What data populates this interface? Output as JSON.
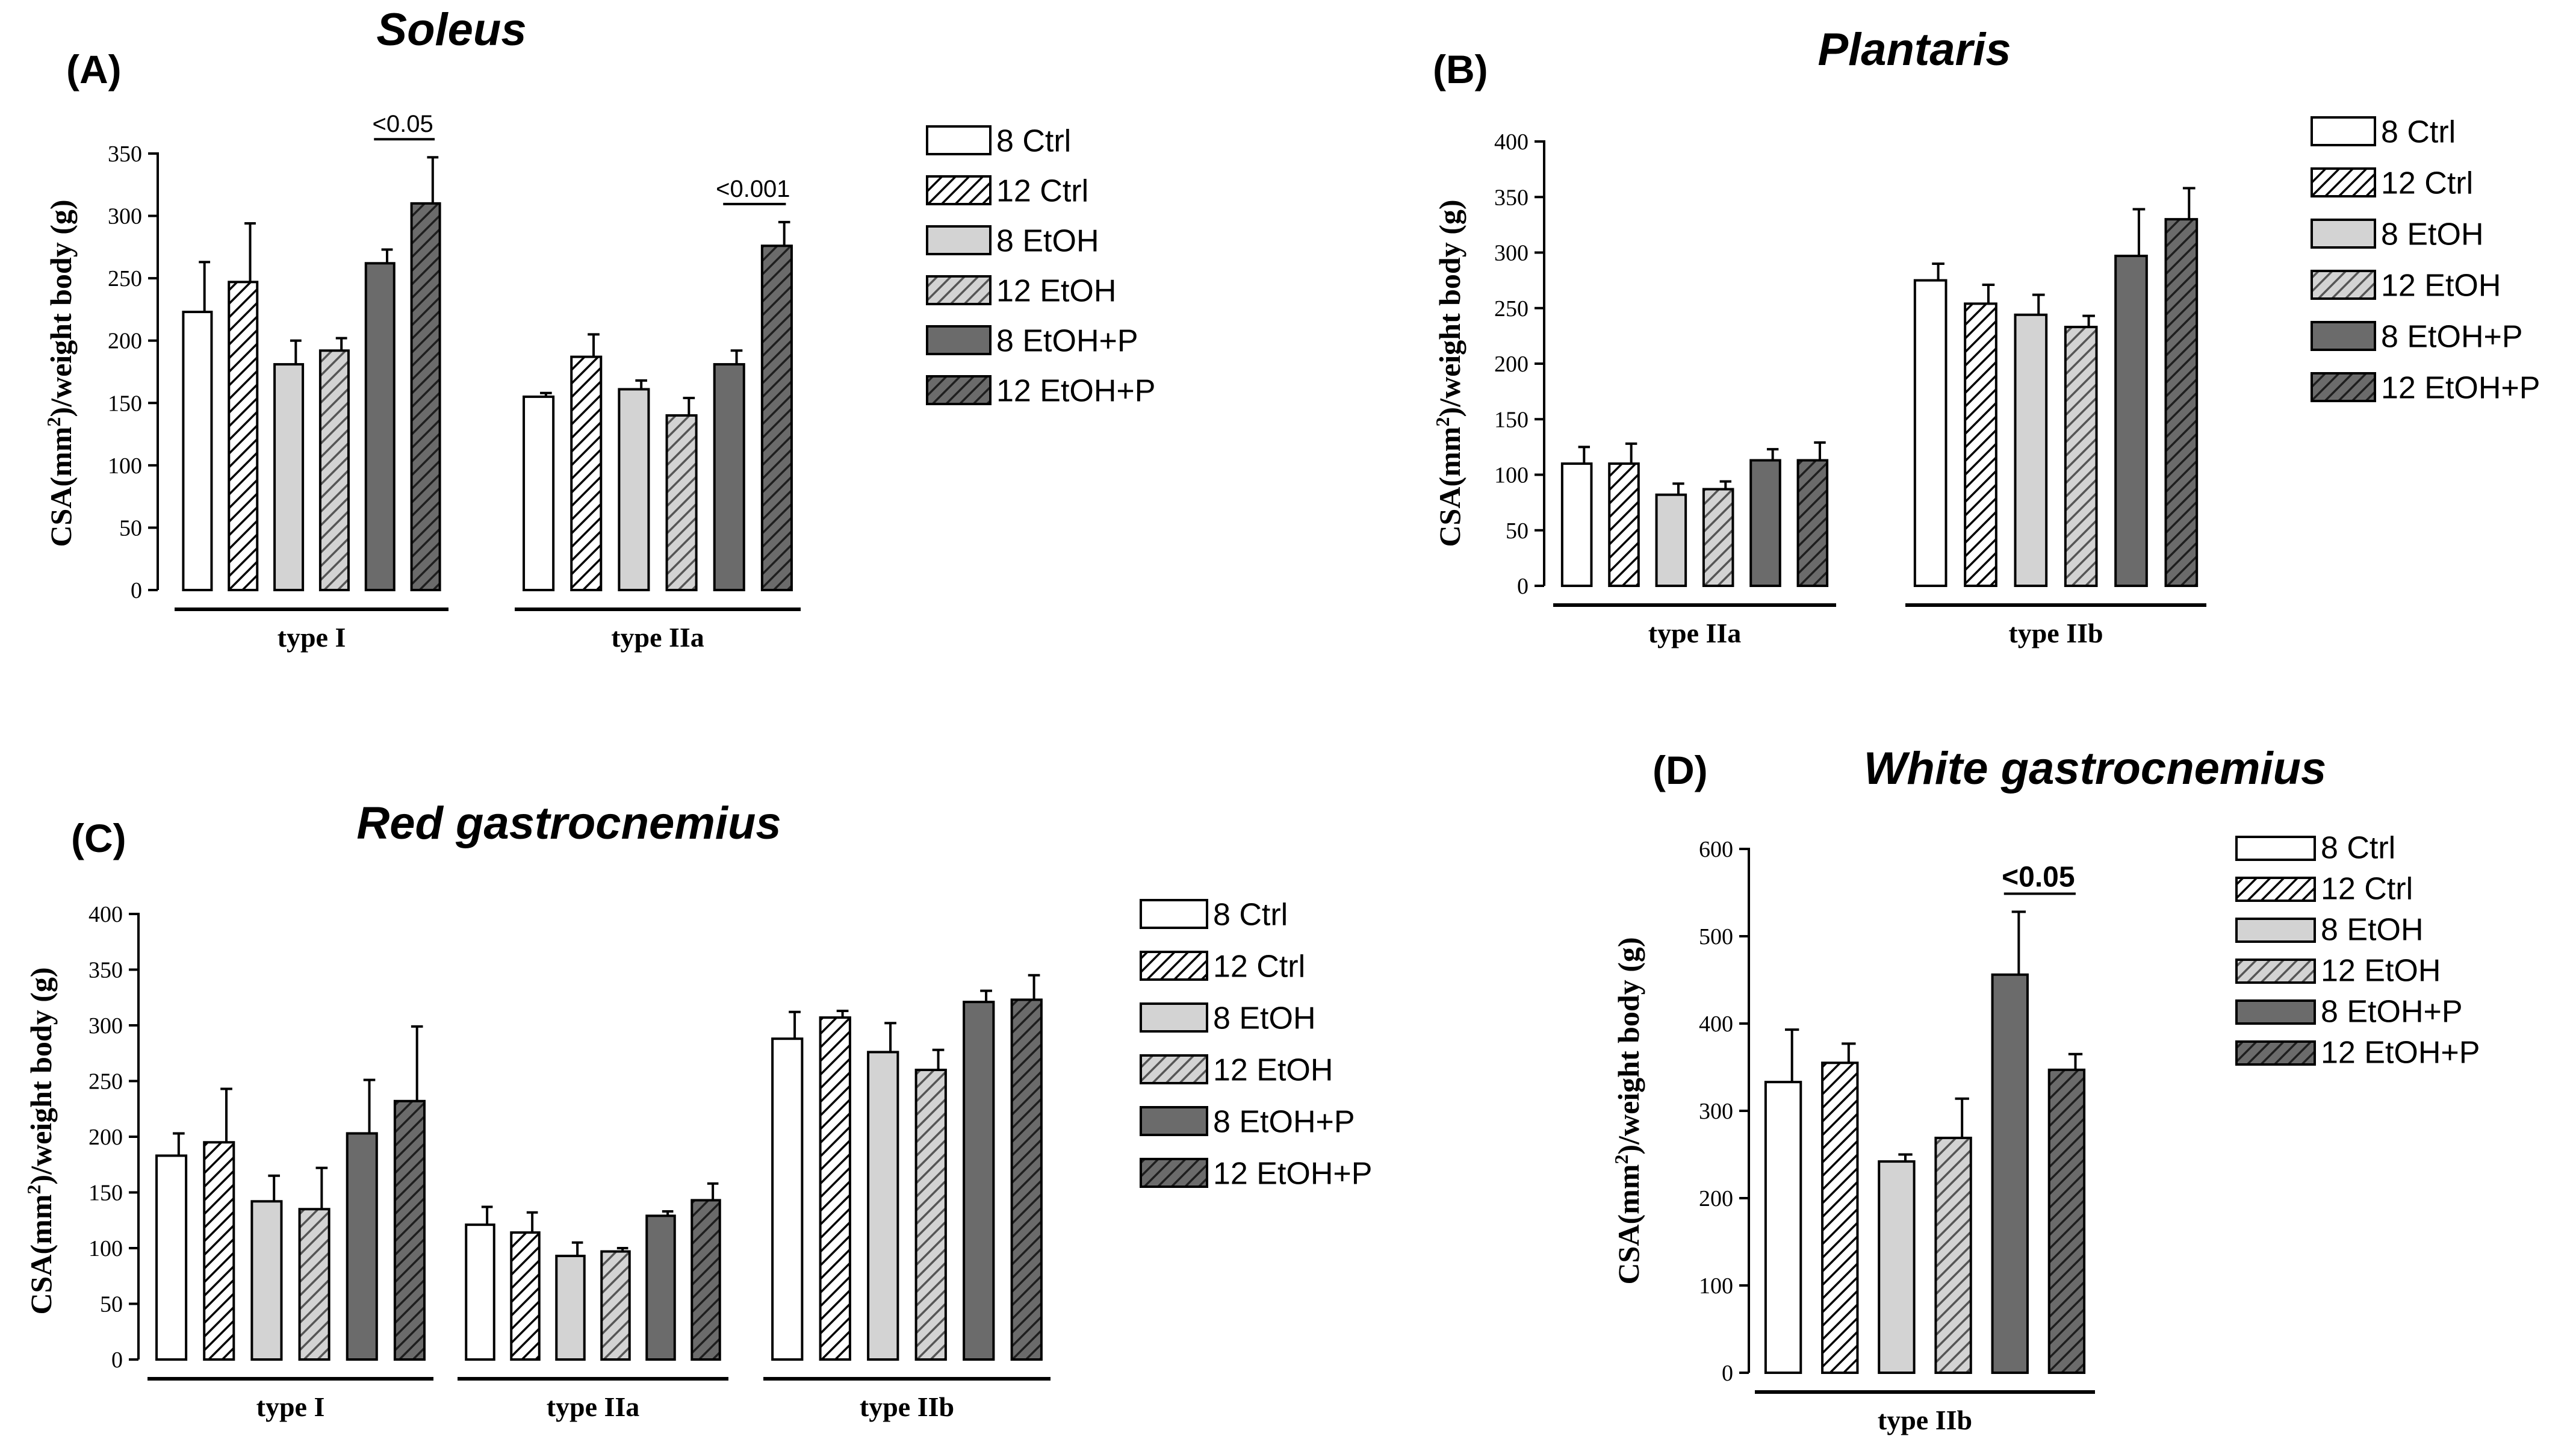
{
  "styles": {
    "8 Ctrl": {
      "fill": "#ffffff",
      "hatch": false
    },
    "12 Ctrl": {
      "fill": "#ffffff",
      "hatch": true,
      "hatchColor": "#000000"
    },
    "8 EtOH": {
      "fill": "#d3d3d3",
      "hatch": false
    },
    "12 EtOH": {
      "fill": "#d3d3d3",
      "hatch": true,
      "hatchColor": "#555555"
    },
    "8 EtOH+P": {
      "fill": "#6b6b6b",
      "hatch": false
    },
    "12 EtOH+P": {
      "fill": "#6b6b6b",
      "hatch": true,
      "hatchColor": "#1e1e1e"
    }
  },
  "chart_data": [
    {
      "type": "bar",
      "panel": "(A)",
      "title": "Soleus",
      "ylabel": "CSA(mm2)/weight body (g)",
      "ylabel_parts": [
        "CSA(mm",
        "2",
        ")/weight body (g)"
      ],
      "ylim": [
        0,
        350
      ],
      "yticks": [
        "0",
        "50",
        "100",
        "150",
        "200",
        "250",
        "300",
        "350"
      ],
      "categories": [
        "type I",
        "type IIa"
      ],
      "series": [
        {
          "name": "8 Ctrl",
          "values": [
            223,
            155
          ],
          "errors": [
            40,
            3
          ]
        },
        {
          "name": "12 Ctrl",
          "values": [
            247,
            187
          ],
          "errors": [
            47,
            18
          ]
        },
        {
          "name": "8 EtOH",
          "values": [
            181,
            161
          ],
          "errors": [
            19,
            7
          ]
        },
        {
          "name": "12 EtOH",
          "values": [
            192,
            140
          ],
          "errors": [
            10,
            14
          ]
        },
        {
          "name": "8 EtOH+P",
          "values": [
            262,
            181
          ],
          "errors": [
            11,
            11
          ]
        },
        {
          "name": "12 EtOH+P",
          "values": [
            310,
            276
          ],
          "errors": [
            37,
            19
          ]
        }
      ],
      "legend": [
        "8 Ctrl",
        "12 Ctrl",
        "8 EtOH",
        "12 EtOH",
        "8 EtOH+P",
        "12 EtOH+P"
      ],
      "annotations": [
        {
          "text": "<0.05",
          "group": 0,
          "from": 4,
          "to": 5
        },
        {
          "text": "<0.001",
          "group": 1,
          "from": 4,
          "to": 5
        }
      ]
    },
    {
      "type": "bar",
      "panel": "(B)",
      "title": "Plantaris",
      "ylabel": "CSA(mm2)/weight body (g)",
      "ylabel_parts": [
        "CSA(mm",
        "2",
        ")/weight body (g)"
      ],
      "ylim": [
        0,
        400
      ],
      "yticks": [
        "0",
        "50",
        "100",
        "150",
        "200",
        "250",
        "300",
        "350",
        "400"
      ],
      "categories": [
        "type IIa",
        "type IIb"
      ],
      "series": [
        {
          "name": "8 Ctrl",
          "values": [
            110,
            275
          ],
          "errors": [
            15,
            15
          ]
        },
        {
          "name": "12 Ctrl",
          "values": [
            110,
            254
          ],
          "errors": [
            18,
            17
          ]
        },
        {
          "name": "8 EtOH",
          "values": [
            82,
            244
          ],
          "errors": [
            10,
            18
          ]
        },
        {
          "name": "12 EtOH",
          "values": [
            87,
            233
          ],
          "errors": [
            7,
            10
          ]
        },
        {
          "name": "8 EtOH+P",
          "values": [
            113,
            297
          ],
          "errors": [
            10,
            42
          ]
        },
        {
          "name": "12 EtOH+P",
          "values": [
            113,
            330
          ],
          "errors": [
            16,
            28
          ]
        }
      ],
      "legend": [
        "8 Ctrl",
        "12 Ctrl",
        "8 EtOH",
        "12 EtOH",
        "8 EtOH+P",
        "12 EtOH+P"
      ],
      "annotations": []
    },
    {
      "type": "bar",
      "panel": "(C)",
      "title": "Red gastrocnemius",
      "ylabel": "CSA(mm2)/weight body (g)",
      "ylabel_parts": [
        "CSA(mm",
        "2",
        ")/weight body (g)"
      ],
      "ylim": [
        0,
        400
      ],
      "yticks": [
        "0",
        "50",
        "100",
        "150",
        "200",
        "250",
        "300",
        "350",
        "400"
      ],
      "categories": [
        "type I",
        "type IIa",
        "type IIb"
      ],
      "series": [
        {
          "name": "8 Ctrl",
          "values": [
            183,
            121,
            288
          ],
          "errors": [
            20,
            16,
            24
          ]
        },
        {
          "name": "12 Ctrl",
          "values": [
            195,
            114,
            307
          ],
          "errors": [
            48,
            18,
            6
          ]
        },
        {
          "name": "8 EtOH",
          "values": [
            142,
            93,
            276
          ],
          "errors": [
            23,
            12,
            26
          ]
        },
        {
          "name": "12 EtOH",
          "values": [
            135,
            97,
            260
          ],
          "errors": [
            37,
            3,
            18
          ]
        },
        {
          "name": "8 EtOH+P",
          "values": [
            203,
            129,
            321
          ],
          "errors": [
            48,
            4,
            10
          ]
        },
        {
          "name": "12 EtOH+P",
          "values": [
            232,
            143,
            323
          ],
          "errors": [
            67,
            15,
            22
          ]
        }
      ],
      "legend": [
        "8 Ctrl",
        "12 Ctrl",
        "8 EtOH",
        "12 EtOH",
        "8 EtOH+P",
        "12 EtOH+P"
      ],
      "annotations": []
    },
    {
      "type": "bar",
      "panel": "(D)",
      "title": "White gastrocnemius",
      "ylabel": "CSA(mm2)/weight body (g)",
      "ylabel_parts": [
        "CSA(mm",
        "2",
        ")/weight body (g)"
      ],
      "ylim": [
        0,
        600
      ],
      "yticks": [
        "0",
        "100",
        "200",
        "300",
        "400",
        "500",
        "600"
      ],
      "categories": [
        "type IIb"
      ],
      "series": [
        {
          "name": "8 Ctrl",
          "values": [
            333
          ],
          "errors": [
            60
          ]
        },
        {
          "name": "12 Ctrl",
          "values": [
            355
          ],
          "errors": [
            22
          ]
        },
        {
          "name": "8 EtOH",
          "values": [
            242
          ],
          "errors": [
            8
          ]
        },
        {
          "name": "12 EtOH",
          "values": [
            269
          ],
          "errors": [
            45
          ]
        },
        {
          "name": "8 EtOH+P",
          "values": [
            456
          ],
          "errors": [
            72
          ]
        },
        {
          "name": "12 EtOH+P",
          "values": [
            347
          ],
          "errors": [
            18
          ]
        }
      ],
      "legend": [
        "8 Ctrl",
        "12 Ctrl",
        "8 EtOH",
        "12 EtOH",
        "8 EtOH+P",
        "12 EtOH+P"
      ],
      "annotations": [
        {
          "text": "<0.05",
          "group": 0,
          "from": 4,
          "to": 5,
          "bold": true
        }
      ]
    }
  ]
}
